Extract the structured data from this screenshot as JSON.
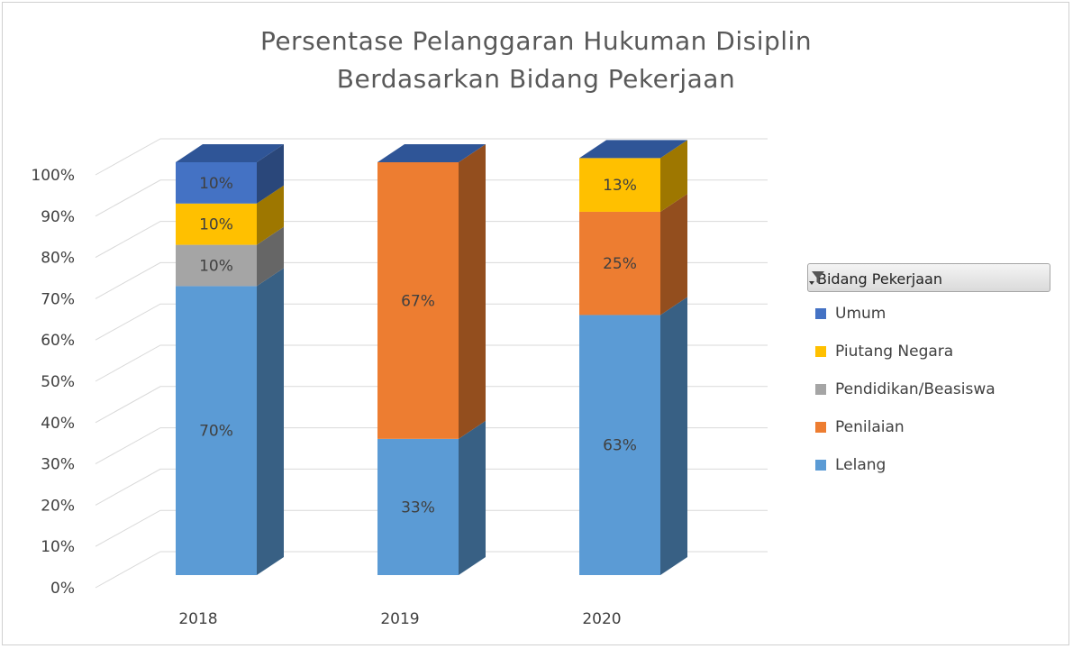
{
  "chart_data": {
    "type": "bar",
    "stacked": true,
    "three_d": true,
    "title_lines": [
      "Persentase Pelanggaran Hukuman Disiplin",
      "Berdasarkan Bidang Pekerjaan"
    ],
    "categories": [
      "2018",
      "2019",
      "2020"
    ],
    "ylim": [
      0,
      100
    ],
    "y_ticks": [
      "0%",
      "10%",
      "20%",
      "30%",
      "40%",
      "50%",
      "60%",
      "70%",
      "80%",
      "90%",
      "100%"
    ],
    "grid": true,
    "legend_position": "right",
    "legend_title": "Bidang Pekerjaan",
    "series": [
      {
        "name": "Lelang",
        "color": "#5b9bd5",
        "values": [
          70,
          33,
          63
        ],
        "labels": [
          "70%",
          "33%",
          "63%"
        ]
      },
      {
        "name": "Penilaian",
        "color": "#ed7d31",
        "values": [
          0,
          67,
          25
        ],
        "labels": [
          "",
          "67%",
          "25%"
        ]
      },
      {
        "name": "Pendidikan/Beasiswa",
        "color": "#a5a5a5",
        "values": [
          10,
          0,
          0
        ],
        "labels": [
          "10%",
          "",
          ""
        ]
      },
      {
        "name": "Piutang Negara",
        "color": "#ffc000",
        "values": [
          10,
          0,
          13
        ],
        "labels": [
          "10%",
          "",
          "13%"
        ]
      },
      {
        "name": "Umum",
        "color": "#4472c4",
        "values": [
          10,
          0,
          0
        ],
        "labels": [
          "10%",
          "",
          ""
        ]
      }
    ],
    "legend_order": [
      "Umum",
      "Piutang Negara",
      "Pendidikan/Beasiswa",
      "Penilaian",
      "Lelang"
    ]
  }
}
